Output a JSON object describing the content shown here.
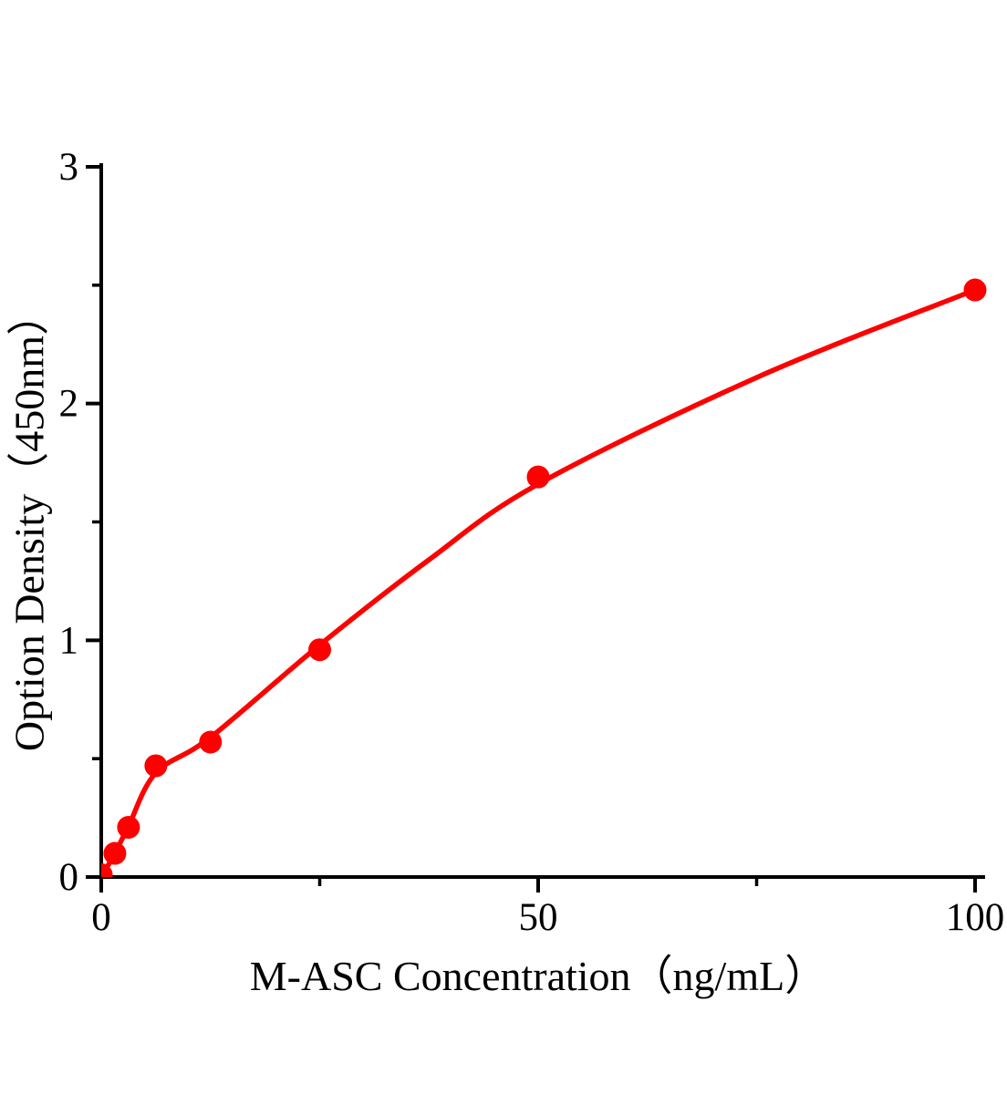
{
  "chart_data": {
    "type": "scatter",
    "title": "",
    "xlabel": "M-ASC Concentration（ng/mL）",
    "ylabel": "Option Density（450nm）",
    "xlim": [
      0,
      100
    ],
    "ylim": [
      0,
      3
    ],
    "grid": false,
    "legend": false,
    "axis_color": "#000000",
    "point_color": "#fe0000",
    "line_color": "#fe0000",
    "x_ticks_major": [
      0,
      50,
      100
    ],
    "x_ticks_minor": [
      25,
      75
    ],
    "y_ticks_major": [
      0,
      1,
      2,
      3
    ],
    "y_ticks_minor": [
      0.5,
      1.5,
      2.5
    ],
    "points": [
      [
        0,
        0.01
      ],
      [
        1.56,
        0.1
      ],
      [
        3.12,
        0.21
      ],
      [
        6.25,
        0.47
      ],
      [
        12.5,
        0.57
      ],
      [
        25,
        0.96
      ],
      [
        50,
        1.69
      ],
      [
        100,
        2.48
      ]
    ],
    "curve_points": [
      [
        0,
        0.0
      ],
      [
        1.56,
        0.1
      ],
      [
        3.12,
        0.215
      ],
      [
        6.25,
        0.44
      ],
      [
        12.5,
        0.59
      ],
      [
        25,
        0.98
      ],
      [
        37.5,
        1.34
      ],
      [
        50,
        1.66
      ],
      [
        75,
        2.11
      ],
      [
        100,
        2.48
      ]
    ]
  }
}
